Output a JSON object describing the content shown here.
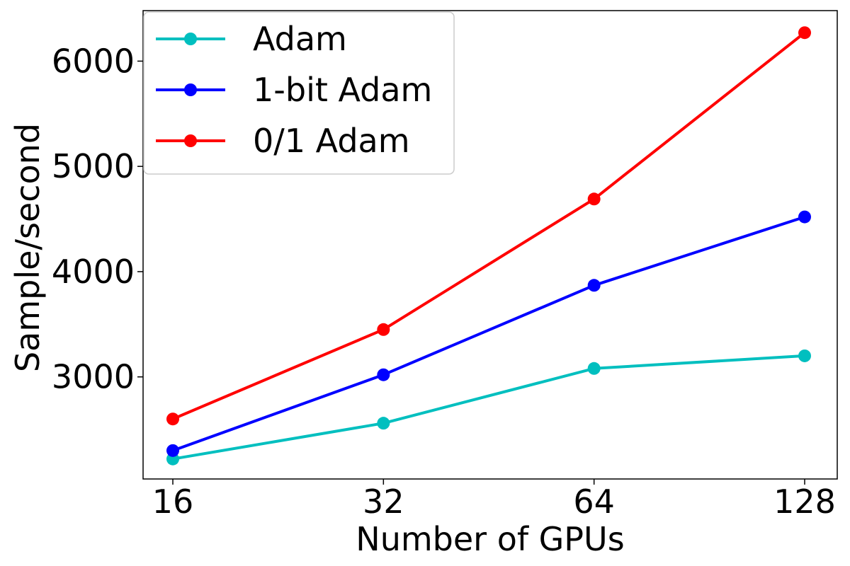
{
  "chart_data": {
    "type": "line",
    "x_scale": "log2",
    "x": [
      16,
      32,
      64,
      128
    ],
    "xticks": [
      "16",
      "32",
      "64",
      "128"
    ],
    "yticks": [
      3000,
      4000,
      5000,
      6000
    ],
    "ylim": [
      2030,
      6480
    ],
    "xlabel": "Number of GPUs",
    "ylabel": "Sample/second",
    "grid": false,
    "legend_position": "top-left",
    "series": [
      {
        "name": "Adam",
        "color": "#00BFBF",
        "values": [
          2220,
          2560,
          3080,
          3200
        ]
      },
      {
        "name": "1-bit Adam",
        "color": "#0000FF",
        "values": [
          2300,
          3020,
          3870,
          4520
        ]
      },
      {
        "name": "0/1 Adam",
        "color": "#FF0000",
        "values": [
          2600,
          3450,
          4690,
          6270
        ]
      }
    ]
  }
}
